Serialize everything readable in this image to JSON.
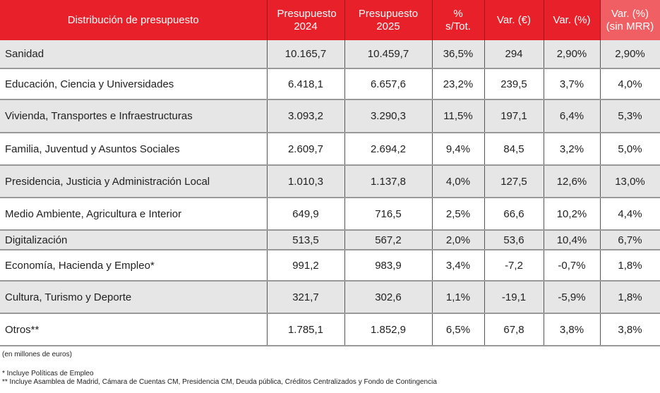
{
  "headers": [
    "Distribución de presupuesto",
    "Presupuesto 2024",
    "Presupuesto 2025",
    "% s/Tot.",
    "Var. (€)",
    "Var. (%)",
    "Var. (%) (sin MRR)"
  ],
  "rows": [
    [
      "Sanidad",
      "10.165,7",
      "10.459,7",
      "36,5%",
      "294",
      "2,90%",
      "2,90%"
    ],
    [
      "Educación, Ciencia y Universidades",
      "6.418,1",
      "6.657,6",
      "23,2%",
      "239,5",
      "3,7%",
      "4,0%"
    ],
    [
      "Vivienda, Transportes e Infraestructuras",
      "3.093,2",
      "3.290,3",
      "11,5%",
      "197,1",
      "6,4%",
      "5,3%"
    ],
    [
      "Familia, Juventud y Asuntos Sociales",
      "2.609,7",
      "2.694,2",
      "9,4%",
      "84,5",
      "3,2%",
      "5,0%"
    ],
    [
      "Presidencia, Justicia y Administración Local",
      "1.010,3",
      "1.137,8",
      "4,0%",
      "127,5",
      "12,6%",
      "13,0%"
    ],
    [
      "Medio Ambiente, Agricultura e Interior",
      "649,9",
      "716,5",
      "2,5%",
      "66,6",
      "10,2%",
      "4,4%"
    ],
    [
      "Digitalización",
      "513,5",
      "567,2",
      "2,0%",
      "53,6",
      "10,4%",
      "6,7%"
    ],
    [
      "Economía, Hacienda y Empleo*",
      "991,2",
      "983,9",
      "3,4%",
      "-7,2",
      "-0,7%",
      "1,8%"
    ],
    [
      "Cultura, Turismo y Deporte",
      "321,7",
      "302,6",
      "1,1%",
      "-19,1",
      "-5,9%",
      "1,8%"
    ],
    [
      "Otros**",
      "1.785,1",
      "1.852,9",
      "6,5%",
      "67,8",
      "3,8%",
      "3,8%"
    ]
  ],
  "notes": {
    "units": "(en millones de euros)",
    "note1": "* Incluye Políticas de Empleo",
    "note2": "** Incluye Asamblea de Madrid, Cámara de Cuentas CM, Presidencia CM, Deuda pública, Créditos Centralizados y Fondo de Contingencia"
  },
  "colors": {
    "header": "#e8202a",
    "header_mrr": "#ef5f63",
    "alt_row": "#e6e6e6"
  }
}
